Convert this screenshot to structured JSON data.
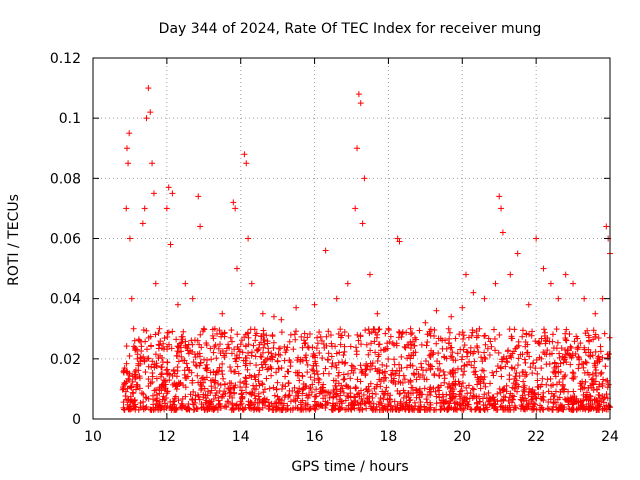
{
  "chart_data": {
    "type": "scatter",
    "title": "Day 344 of 2024, Rate Of TEC Index for receiver mung",
    "xlabel": "GPS time / hours",
    "ylabel": "ROTI / TECUs",
    "xlim": [
      10,
      24
    ],
    "ylim": [
      0,
      0.12
    ],
    "x_ticks": [
      "10",
      "12",
      "14",
      "16",
      "18",
      "20",
      "22",
      "24"
    ],
    "y_ticks": [
      "0",
      "0.02",
      "0.04",
      "0.06",
      "0.08",
      "0.1",
      "0.12"
    ],
    "grid": true,
    "marker": "+",
    "color": "#ff0000",
    "series": [
      {
        "name": "ROTI",
        "points": [
          [
            10.85,
            0.012
          ],
          [
            10.9,
            0.07
          ],
          [
            10.92,
            0.09
          ],
          [
            10.95,
            0.085
          ],
          [
            10.98,
            0.095
          ],
          [
            11.0,
            0.06
          ],
          [
            11.05,
            0.04
          ],
          [
            11.1,
            0.03
          ],
          [
            11.2,
            0.02
          ],
          [
            11.35,
            0.065
          ],
          [
            11.4,
            0.07
          ],
          [
            11.45,
            0.1
          ],
          [
            11.5,
            0.11
          ],
          [
            11.55,
            0.102
          ],
          [
            11.6,
            0.085
          ],
          [
            11.65,
            0.075
          ],
          [
            11.7,
            0.045
          ],
          [
            11.8,
            0.03
          ],
          [
            11.9,
            0.025
          ],
          [
            12.0,
            0.07
          ],
          [
            12.05,
            0.077
          ],
          [
            12.1,
            0.058
          ],
          [
            12.15,
            0.075
          ],
          [
            12.3,
            0.038
          ],
          [
            12.5,
            0.045
          ],
          [
            12.7,
            0.04
          ],
          [
            12.85,
            0.074
          ],
          [
            12.9,
            0.064
          ],
          [
            13.0,
            0.03
          ],
          [
            13.3,
            0.03
          ],
          [
            13.5,
            0.035
          ],
          [
            13.8,
            0.072
          ],
          [
            13.85,
            0.07
          ],
          [
            13.9,
            0.05
          ],
          [
            14.1,
            0.088
          ],
          [
            14.15,
            0.085
          ],
          [
            14.2,
            0.06
          ],
          [
            14.3,
            0.045
          ],
          [
            14.6,
            0.035
          ],
          [
            14.9,
            0.034
          ],
          [
            15.1,
            0.033
          ],
          [
            15.5,
            0.037
          ],
          [
            16.0,
            0.038
          ],
          [
            16.3,
            0.056
          ],
          [
            16.6,
            0.04
          ],
          [
            16.9,
            0.045
          ],
          [
            17.1,
            0.07
          ],
          [
            17.15,
            0.09
          ],
          [
            17.2,
            0.108
          ],
          [
            17.25,
            0.105
          ],
          [
            17.3,
            0.065
          ],
          [
            17.35,
            0.08
          ],
          [
            17.5,
            0.048
          ],
          [
            17.7,
            0.035
          ],
          [
            18.0,
            0.03
          ],
          [
            18.25,
            0.06
          ],
          [
            18.3,
            0.059
          ],
          [
            18.6,
            0.03
          ],
          [
            19.0,
            0.032
          ],
          [
            19.3,
            0.036
          ],
          [
            19.7,
            0.034
          ],
          [
            20.0,
            0.037
          ],
          [
            20.1,
            0.048
          ],
          [
            20.3,
            0.042
          ],
          [
            20.6,
            0.04
          ],
          [
            20.9,
            0.045
          ],
          [
            21.0,
            0.074
          ],
          [
            21.05,
            0.07
          ],
          [
            21.1,
            0.062
          ],
          [
            21.3,
            0.048
          ],
          [
            21.5,
            0.055
          ],
          [
            21.8,
            0.038
          ],
          [
            22.0,
            0.06
          ],
          [
            22.2,
            0.05
          ],
          [
            22.4,
            0.045
          ],
          [
            22.6,
            0.04
          ],
          [
            22.8,
            0.048
          ],
          [
            23.0,
            0.045
          ],
          [
            23.3,
            0.04
          ],
          [
            23.6,
            0.035
          ],
          [
            23.8,
            0.04
          ],
          [
            23.9,
            0.064
          ],
          [
            23.95,
            0.06
          ],
          [
            24.0,
            0.055
          ]
        ],
        "baseline_band": {
          "x_range": [
            10.8,
            24.0
          ],
          "typical_range": [
            0.003,
            0.03
          ]
        }
      }
    ]
  }
}
